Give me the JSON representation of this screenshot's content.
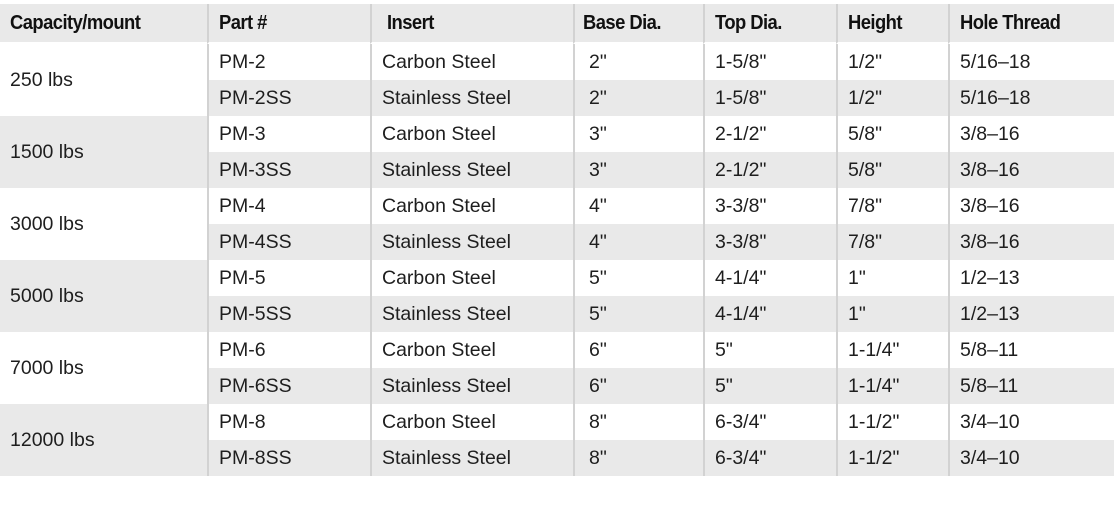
{
  "headers": [
    "Capacity/mount",
    "Part #",
    "Insert",
    "Base Dia.",
    "Top Dia.",
    "Height",
    "Hole Thread"
  ],
  "colors": {
    "stripe": "#e9e9e9",
    "divider": "#d2d2d2"
  },
  "groups": [
    {
      "capacity": "250 lbs",
      "rows": [
        {
          "part": "PM-2",
          "insert": "Carbon Steel",
          "base": "2\"",
          "top": "1-5/8\"",
          "height": "1/2\"",
          "thread": "5/16–18"
        },
        {
          "part": "PM-2SS",
          "insert": "Stainless Steel",
          "base": "2\"",
          "top": "1-5/8\"",
          "height": "1/2\"",
          "thread": "5/16–18"
        }
      ]
    },
    {
      "capacity": "1500 lbs",
      "rows": [
        {
          "part": "PM-3",
          "insert": "Carbon Steel",
          "base": "3\"",
          "top": "2-1/2\"",
          "height": "5/8\"",
          "thread": "3/8–16"
        },
        {
          "part": "PM-3SS",
          "insert": "Stainless Steel",
          "base": "3\"",
          "top": "2-1/2\"",
          "height": "5/8\"",
          "thread": "3/8–16"
        }
      ]
    },
    {
      "capacity": "3000 lbs",
      "rows": [
        {
          "part": "PM-4",
          "insert": "Carbon Steel",
          "base": "4\"",
          "top": "3-3/8\"",
          "height": "7/8\"",
          "thread": "3/8–16"
        },
        {
          "part": "PM-4SS",
          "insert": "Stainless Steel",
          "base": "4\"",
          "top": "3-3/8\"",
          "height": "7/8\"",
          "thread": "3/8–16"
        }
      ]
    },
    {
      "capacity": "5000 lbs",
      "rows": [
        {
          "part": "PM-5",
          "insert": "Carbon Steel",
          "base": "5\"",
          "top": "4-1/4\"",
          "height": "1\"",
          "thread": "1/2–13"
        },
        {
          "part": "PM-5SS",
          "insert": "Stainless Steel",
          "base": "5\"",
          "top": "4-1/4\"",
          "height": "1\"",
          "thread": "1/2–13"
        }
      ]
    },
    {
      "capacity": "7000 lbs",
      "rows": [
        {
          "part": "PM-6",
          "insert": "Carbon Steel",
          "base": "6\"",
          "top": "5\"",
          "height": "1-1/4\"",
          "thread": "5/8–11"
        },
        {
          "part": "PM-6SS",
          "insert": "Stainless Steel",
          "base": "6\"",
          "top": "5\"",
          "height": "1-1/4\"",
          "thread": "5/8–11"
        }
      ]
    },
    {
      "capacity": "12000 lbs",
      "rows": [
        {
          "part": "PM-8",
          "insert": "Carbon Steel",
          "base": "8\"",
          "top": "6-3/4\"",
          "height": "1-1/2\"",
          "thread": "3/4–10"
        },
        {
          "part": "PM-8SS",
          "insert": "Stainless Steel",
          "base": "8\"",
          "top": "6-3/4\"",
          "height": "1-1/2\"",
          "thread": "3/4–10"
        }
      ]
    }
  ]
}
